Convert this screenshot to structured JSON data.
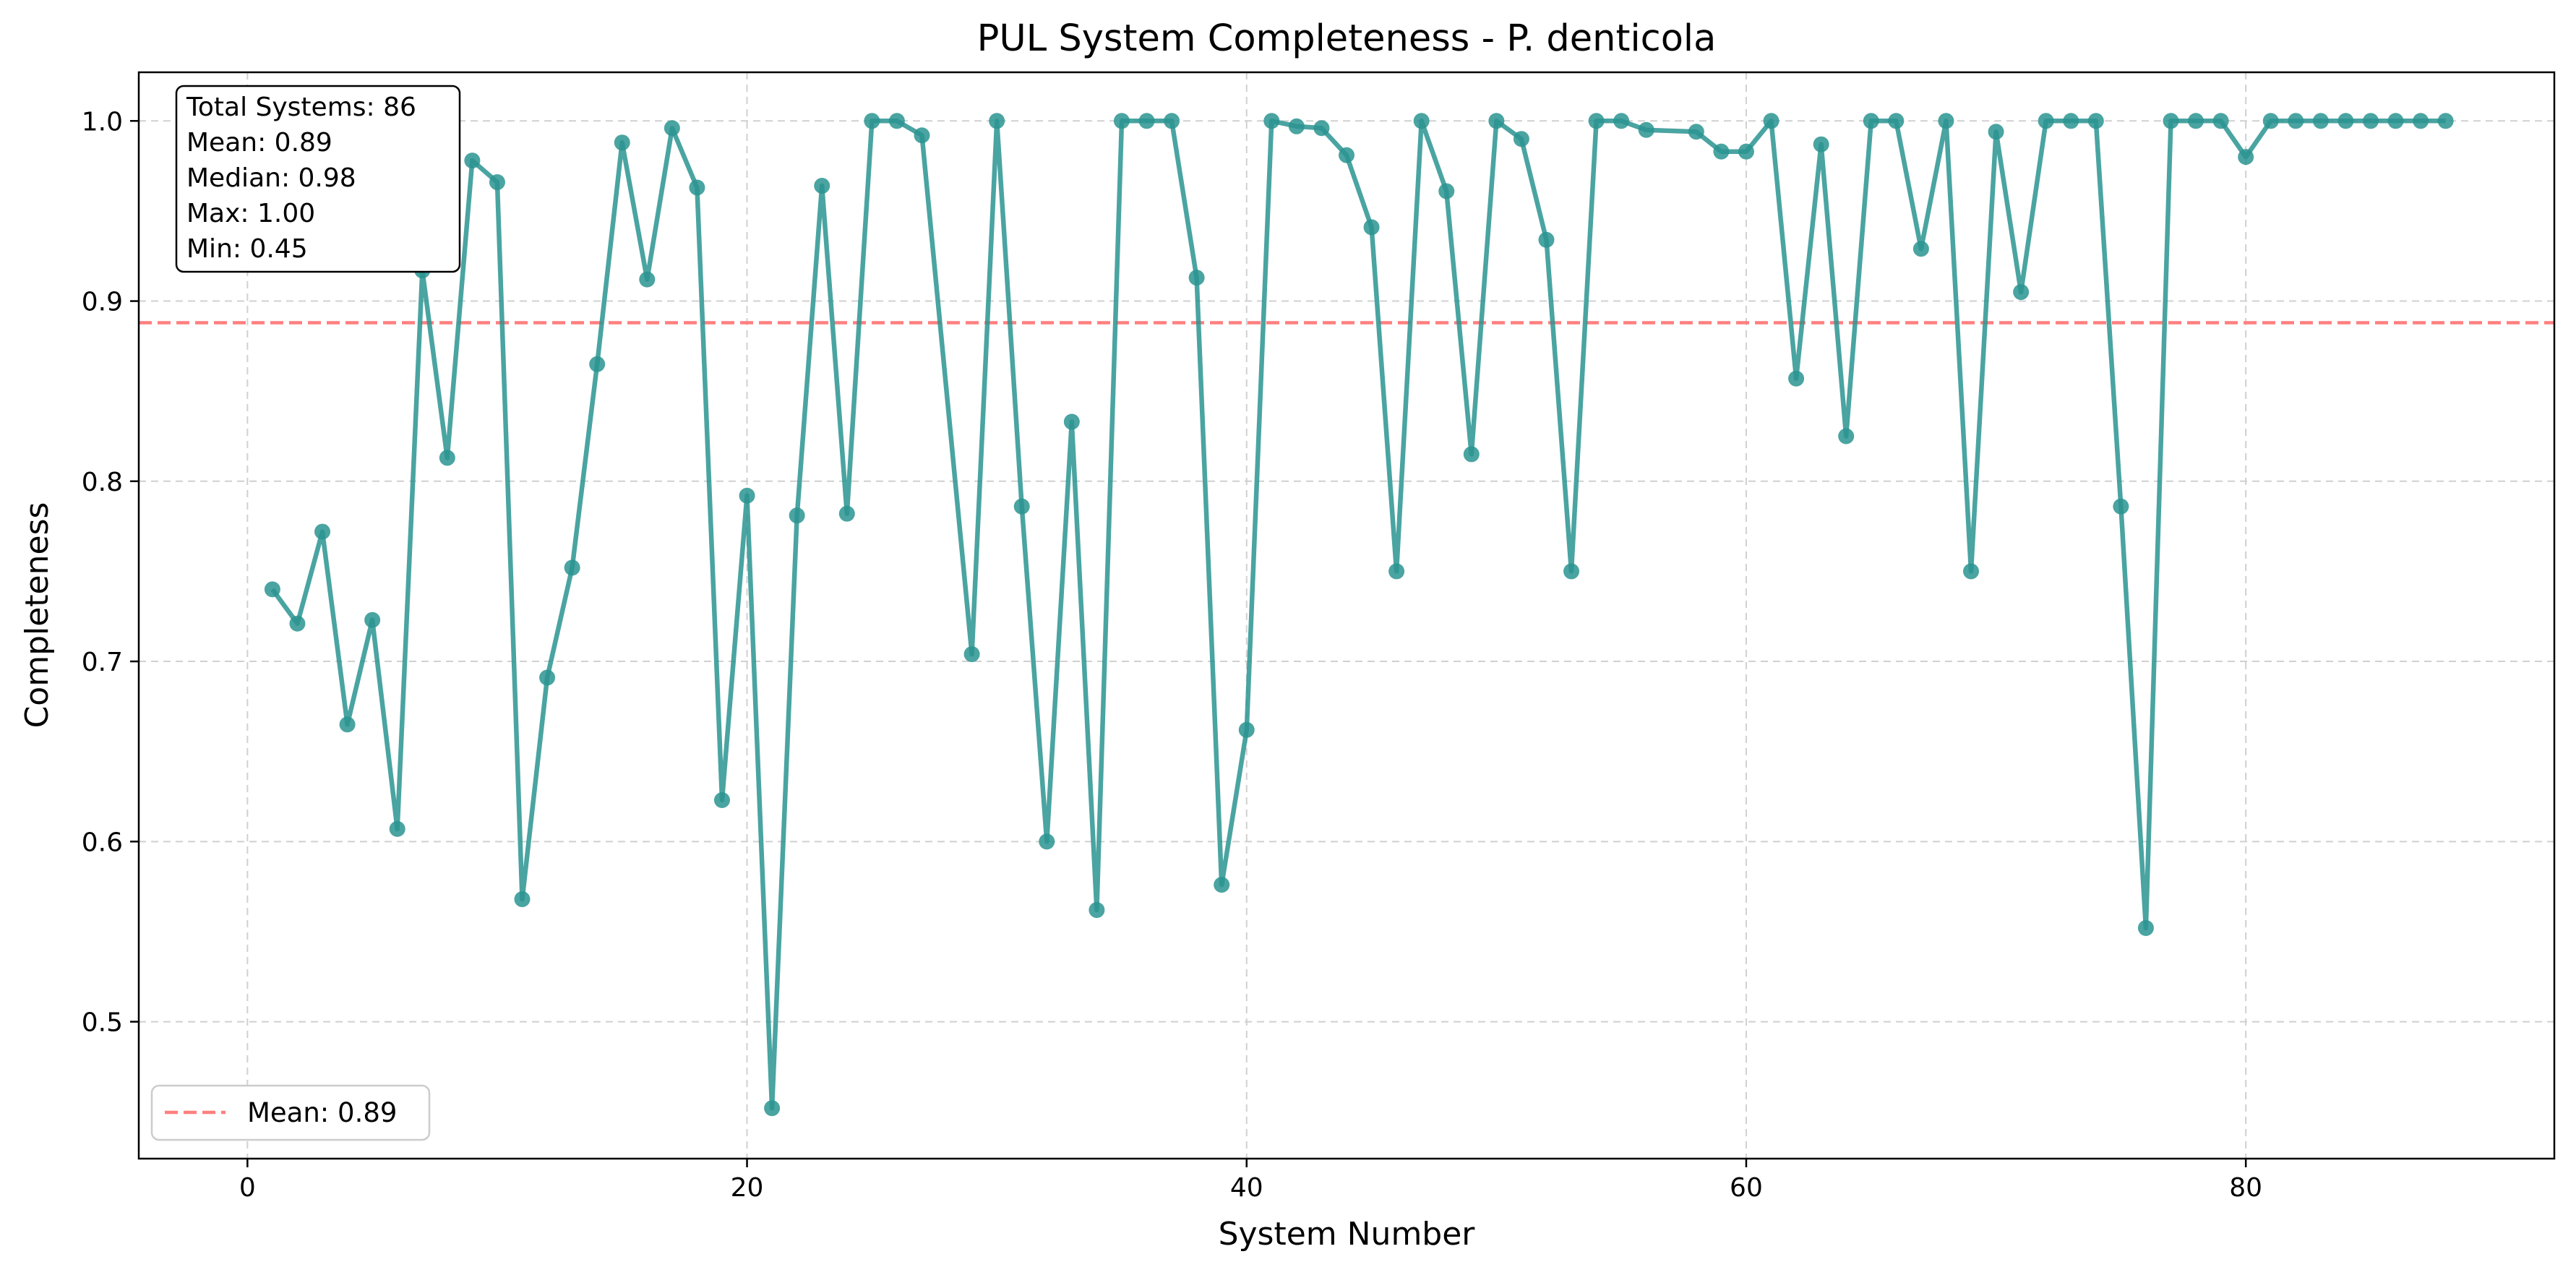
{
  "chart_data": {
    "type": "line",
    "title": "PUL System Completeness - P. denticola",
    "xlabel": "System Number",
    "ylabel": "Completeness",
    "xlim": [
      -4.35,
      92.35
    ],
    "ylim": [
      0.424,
      1.027
    ],
    "xticks": [
      0,
      20,
      40,
      60,
      80
    ],
    "yticks": [
      0.5,
      0.6,
      0.7,
      0.8,
      0.9,
      1.0
    ],
    "grid": true,
    "line_color": "#2a9491",
    "x": [
      1,
      2,
      3,
      4,
      5,
      6,
      7,
      8,
      9,
      10,
      11,
      12,
      13,
      14,
      15,
      16,
      17,
      18,
      19,
      20,
      21,
      22,
      23,
      24,
      25,
      26,
      27,
      29,
      30,
      31,
      32,
      33,
      34,
      35,
      36,
      37,
      38,
      39,
      40,
      41,
      42,
      43,
      44,
      45,
      46,
      47,
      48,
      49,
      50,
      51,
      52,
      53,
      54,
      55,
      56,
      58,
      59,
      60,
      61,
      62,
      63,
      64,
      65,
      66,
      67,
      68,
      69,
      70,
      71,
      72,
      73,
      74,
      75,
      76,
      77,
      78,
      79,
      80,
      81,
      82,
      83,
      84,
      85,
      86,
      87,
      88
    ],
    "y": [
      0.74,
      0.721,
      0.772,
      0.665,
      0.723,
      0.607,
      0.917,
      0.813,
      0.978,
      0.966,
      0.568,
      0.691,
      0.752,
      0.865,
      0.988,
      0.912,
      0.996,
      0.963,
      0.623,
      0.792,
      0.452,
      0.781,
      0.964,
      0.782,
      1.0,
      1.0,
      0.992,
      0.704,
      1.0,
      0.786,
      0.6,
      0.833,
      0.562,
      1.0,
      1.0,
      1.0,
      0.913,
      0.576,
      0.662,
      1.0,
      0.997,
      0.996,
      0.981,
      0.941,
      0.75,
      1.0,
      0.961,
      0.815,
      1.0,
      0.99,
      0.934,
      0.75,
      1.0,
      1.0,
      0.995,
      0.994,
      0.983,
      0.983,
      1.0,
      0.857,
      0.987,
      0.825,
      1.0,
      1.0,
      0.929,
      1.0,
      0.75,
      0.994,
      0.905,
      1.0,
      1.0,
      1.0,
      0.786,
      0.552,
      1.0,
      1.0,
      1.0,
      0.98,
      1.0,
      1.0,
      1.0,
      1.0,
      1.0,
      1.0,
      1.0,
      1.0
    ],
    "mean_line": {
      "value": 0.888,
      "color": "#ff7f7f",
      "label": "Mean: 0.89"
    },
    "legend": {
      "placement": "lower-left"
    },
    "stats_box": {
      "placement": "top-left",
      "lines": [
        "Total Systems: 86",
        "Mean: 0.89",
        "Median: 0.98",
        "Max: 1.00",
        "Min: 0.45"
      ]
    }
  }
}
